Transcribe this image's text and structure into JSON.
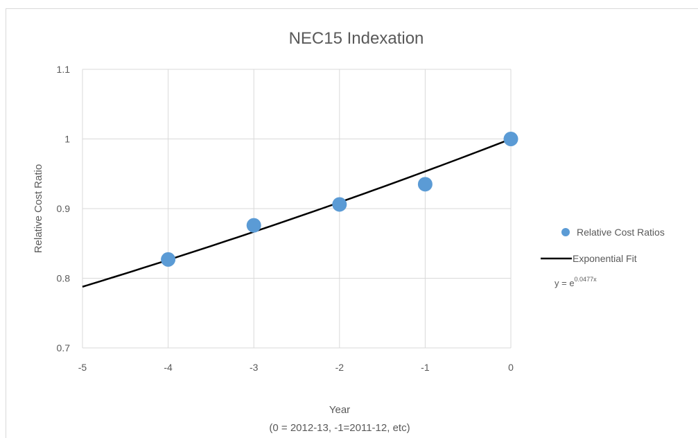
{
  "chart_data": {
    "type": "scatter",
    "title": "NEC15 Indexation",
    "xlabel": "Year",
    "xlabel_sub": "(0 = 2012-13, -1=2011-12, etc)",
    "ylabel": "Relative Cost Ratio",
    "xlim": [
      -5,
      0
    ],
    "ylim": [
      0.7,
      1.1
    ],
    "x_ticks": [
      "-5",
      "-4",
      "-3",
      "-2",
      "-1",
      "0"
    ],
    "y_ticks": [
      "0.7",
      "0.8",
      "0.9",
      "1",
      "1.1"
    ],
    "grid": true,
    "legend_position": "right",
    "series": [
      {
        "name": "Relative Cost Ratios",
        "kind": "points",
        "color": "#5b9bd5",
        "x": [
          -4,
          -3,
          -2,
          -1,
          0
        ],
        "y": [
          0.827,
          0.876,
          0.906,
          0.935,
          1.0
        ]
      },
      {
        "name": "Exponential Fit",
        "kind": "line",
        "color": "#000000",
        "equation_base": "y = e",
        "equation_exponent": "0.0477x",
        "coefficient": 0.0477
      }
    ]
  }
}
